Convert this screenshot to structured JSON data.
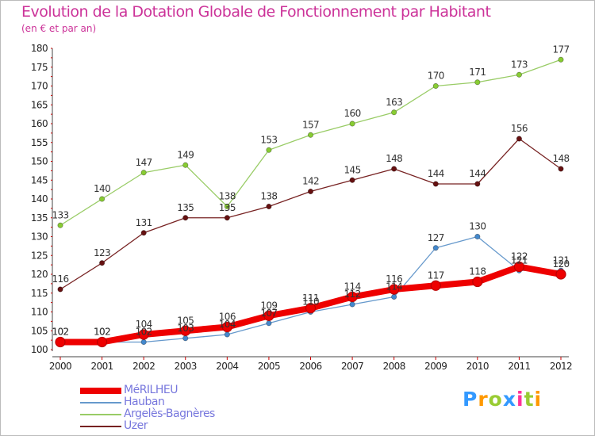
{
  "header": {
    "title": "Evolution de la Dotation Globale de Fonctionnement par Habitant",
    "subtitle": "(en € et par an)"
  },
  "brand": {
    "logo_text": "Proxiti",
    "colors": [
      "#3399ff",
      "#ff9900",
      "#99cc33",
      "#3399ff",
      "#ff3399",
      "#99cc33",
      "#ff9900"
    ]
  },
  "chart_data": {
    "type": "line",
    "title": "Evolution de la Dotation Globale de Fonctionnement par Habitant",
    "subtitle": "(en € et par an)",
    "xlabel": "",
    "ylabel": "",
    "x": [
      "2000",
      "2001",
      "2002",
      "2003",
      "2004",
      "2005",
      "2006",
      "2007",
      "2008",
      "2009",
      "2010",
      "2011",
      "2012"
    ],
    "ylim": [
      100,
      180
    ],
    "yticks": [
      100,
      105,
      110,
      115,
      120,
      125,
      130,
      135,
      140,
      145,
      150,
      155,
      160,
      165,
      170,
      175,
      180
    ],
    "grid": false,
    "legend_position": "bottom-left",
    "series": [
      {
        "name": "Argelès-Bagnères",
        "color": "#99cc66",
        "point_color": "#88cc33",
        "width": 1.3,
        "point_r": 3.2,
        "values": [
          133,
          140,
          147,
          149,
          138,
          153,
          157,
          160,
          163,
          170,
          171,
          173,
          177
        ],
        "labels": [
          "133",
          "140",
          "147",
          "149",
          "138",
          "153",
          "157",
          "160",
          "163",
          "170",
          "171",
          "173",
          "177"
        ]
      },
      {
        "name": "Uzer",
        "color": "#772222",
        "point_color": "#661111",
        "width": 1.3,
        "point_r": 3.2,
        "values": [
          116,
          123,
          131,
          135,
          135,
          138,
          142,
          145,
          148,
          144,
          144,
          156,
          148
        ],
        "labels": [
          "116",
          "123",
          "131",
          "135",
          "135",
          "138",
          "142",
          "145",
          "148",
          "144",
          "144",
          "156",
          "148"
        ]
      },
      {
        "name": "Hauban",
        "color": "#6699cc",
        "point_color": "#4488cc",
        "width": 1.3,
        "point_r": 3.2,
        "values": [
          102,
          102,
          102,
          103,
          104,
          107,
          110,
          112,
          114,
          127,
          130,
          121,
          121
        ],
        "labels": [
          "102",
          "102",
          "102",
          "103",
          "104",
          "107",
          "110",
          "112",
          "114",
          "127",
          "130",
          "121",
          "121"
        ]
      },
      {
        "name": "MéRILHEU",
        "color": "#ee0000",
        "point_color": "#ee0000",
        "width": 8,
        "point_r": 6,
        "values": [
          102,
          102,
          104,
          105,
          106,
          109,
          111,
          114,
          116,
          117,
          118,
          122,
          120
        ],
        "labels": [
          "102",
          "102",
          "104",
          "105",
          "106",
          "109",
          "111",
          "114",
          "116",
          "117",
          "118",
          "122",
          "120"
        ]
      }
    ],
    "legend": [
      {
        "name": "MéRILHEU",
        "color": "#ee0000",
        "width": 8
      },
      {
        "name": "Hauban",
        "color": "#6699cc",
        "width": 2
      },
      {
        "name": "Argelès-Bagnères",
        "color": "#99cc66",
        "width": 2
      },
      {
        "name": "Uzer",
        "color": "#772222",
        "width": 2
      }
    ]
  }
}
